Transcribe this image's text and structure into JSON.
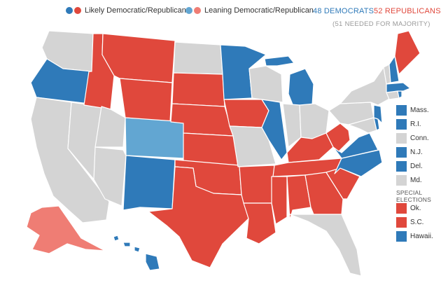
{
  "colors": {
    "dem": "#2f7ab9",
    "rep": "#e0483c",
    "lean_dem": "#62a6d2",
    "lean_rep": "#ef7d74",
    "none": "#d4d4d4"
  },
  "legend": {
    "likely": "Likely Democratic/Republican",
    "leaning": "Leaning Democratic/Republican",
    "dem_count": "48 DEMOCRATS",
    "rep_count": "52 REPUBLICANS",
    "majority": "(51 NEEDED FOR MAJORITY)"
  },
  "side_legend": {
    "states": [
      {
        "label": "Mass.",
        "color": "dem"
      },
      {
        "label": "R.I.",
        "color": "dem"
      },
      {
        "label": "Conn.",
        "color": "none"
      },
      {
        "label": "N.J.",
        "color": "dem"
      },
      {
        "label": "Del.",
        "color": "dem"
      },
      {
        "label": "Md.",
        "color": "none"
      }
    ],
    "special_title_1": "SPECIAL",
    "special_title_2": "ELECTIONS",
    "special": [
      {
        "label": "Ok.",
        "color": "rep"
      },
      {
        "label": "S.C.",
        "color": "rep"
      },
      {
        "label": "Hawaii.",
        "color": "dem"
      }
    ]
  }
}
